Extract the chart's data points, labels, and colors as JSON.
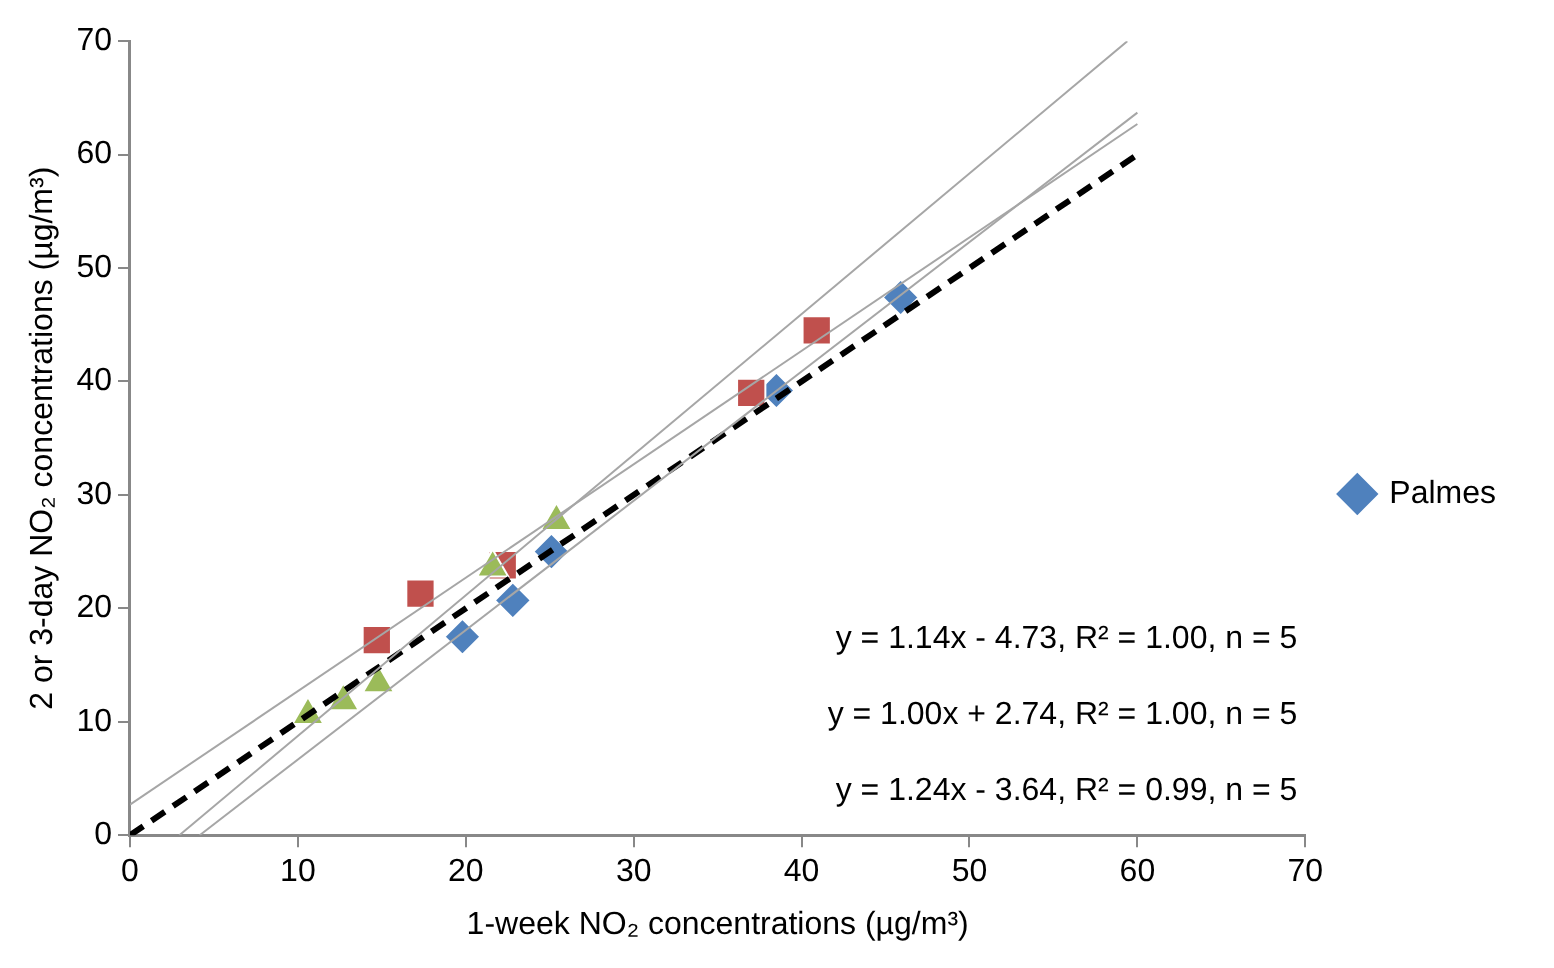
{
  "chart_data": {
    "type": "scatter",
    "xlabel": "1-week NO₂ concentrations (µg/m³)",
    "ylabel": "2 or 3-day NO₂ concentrations (µg/m³)",
    "xlim": [
      0,
      70
    ],
    "xticks": [
      0,
      10,
      20,
      30,
      40,
      50,
      60,
      70
    ],
    "ylim": [
      0,
      70
    ],
    "yticks": [
      0,
      10,
      20,
      30,
      40,
      50,
      60,
      70
    ],
    "grid": false,
    "legend": "right",
    "series": [
      {
        "name": "Palmes",
        "color": "#4f81bd",
        "marker": "diamond",
        "x": [
          19.8,
          22.8,
          25.1,
          38.5,
          45.9
        ],
        "values": [
          17.5,
          20.7,
          25,
          39.2,
          47.4
        ]
      },
      {
        "color": "#c0504d",
        "marker": "square",
        "x": [
          14.7,
          17.3,
          22.2,
          37,
          40.9
        ],
        "values": [
          17.2,
          21.3,
          23.8,
          39,
          44.5
        ]
      },
      {
        "color": "#9bbb59",
        "marker": "triangle",
        "x": [
          10.6,
          12.7,
          14.8,
          21.6,
          25.4
        ],
        "values": [
          10.6,
          11.8,
          13.4,
          23.6,
          27.7
        ]
      },
      {
        "type": "line",
        "color": "#000000",
        "line_style": "dashed",
        "x": [
          0,
          60
        ],
        "values": [
          0,
          60
        ]
      },
      {
        "type": "line",
        "color": "#a6a6a6",
        "line_style": "solid",
        "x": [
          4.15,
          60
        ],
        "values": [
          0,
          63.7
        ]
      },
      {
        "type": "line",
        "color": "#a6a6a6",
        "line_style": "solid",
        "x": [
          0,
          60
        ],
        "values": [
          2.7,
          62.7
        ]
      },
      {
        "type": "line",
        "color": "#a6a6a6",
        "line_style": "solid",
        "x": [
          2.94,
          59.4
        ],
        "values": [
          0,
          70
        ]
      }
    ],
    "annotations": [
      "y = 1.14x - 4.73, R² = 1.00, n = 5",
      "y = 1.00x + 2.74, R² = 1.00, n = 5",
      "y = 1.24x - 3.64, R² = 0.99, n = 5"
    ]
  }
}
